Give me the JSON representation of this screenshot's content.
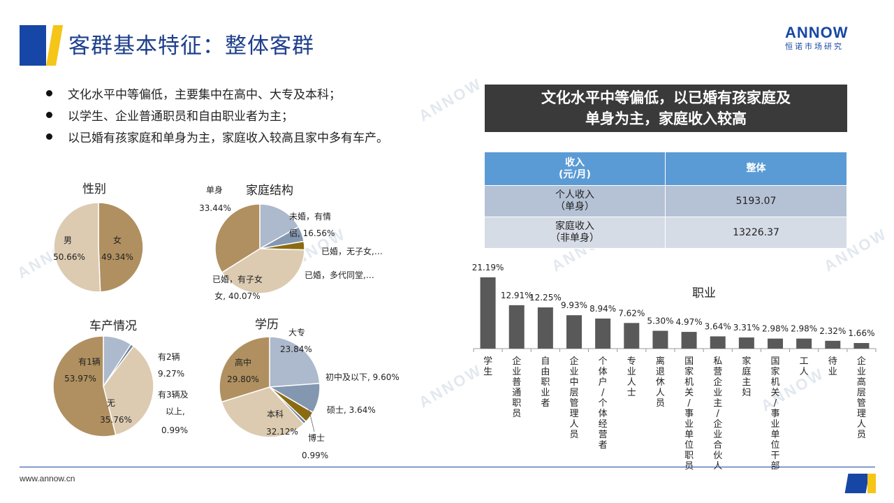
{
  "page": {
    "title": "客群基本特征：整体客群",
    "logo_word": "ANNOW",
    "logo_sub": "恒诺市场研究",
    "footer_url": "www.annow.cn"
  },
  "bullets": [
    "文化水平中等偏低，主要集中在高中、大专及本科；",
    "以学生、企业普通职员和自由职业者为主；",
    "以已婚有孩家庭和单身为主，家庭收入较高且家中多有车产。"
  ],
  "banner": {
    "line1": "文化水平中等偏低，以已婚有孩家庭及",
    "line2": "单身为主，家庭收入较高"
  },
  "income_table": {
    "header_col1_line1": "收入",
    "header_col1_line2": "(元/月)",
    "header_col2": "整体",
    "rows": [
      {
        "label_line1": "个人收入",
        "label_line2": "（单身）",
        "value": "5193.07"
      },
      {
        "label_line1": "家庭收入",
        "label_line2": "（非单身）",
        "value": "13226.37"
      }
    ]
  },
  "colors": {
    "brown": "#b09060",
    "beige": "#dccbb1",
    "slate_light": "#adb9cc",
    "slate": "#8497b0",
    "olive": "#8b6b12",
    "slate_dark": "#6e7f97",
    "bar": "#595959",
    "brand_blue": "#1747a6",
    "brand_yellow": "#f5c518"
  },
  "chart_data": [
    {
      "type": "pie",
      "title": "性别",
      "slices": [
        {
          "label": "女",
          "value": 49.34,
          "display": "49.34%",
          "color": "#b09060"
        },
        {
          "label": "男",
          "value": 50.66,
          "display": "50.66%",
          "color": "#dccbb1"
        }
      ]
    },
    {
      "type": "pie",
      "title": "家庭结构",
      "slices": [
        {
          "label": "未婚，有情侣",
          "value": 16.56,
          "display": "16.56%",
          "color": "#adb9cc"
        },
        {
          "label": "已婚，无子女,…",
          "value": 5.5,
          "display": "",
          "color": "#8497b0"
        },
        {
          "label": "已婚，多代同堂,…",
          "value": 2.99,
          "display": "",
          "color": "#8b6b12"
        },
        {
          "label": "已婚，有子女",
          "value": 40.07,
          "display": "40.07%",
          "color": "#dccbb1"
        },
        {
          "label": "单身",
          "value": 33.44,
          "display": "33.44%",
          "color": "#b09060"
        }
      ]
    },
    {
      "type": "pie",
      "title": "车产情况",
      "slices": [
        {
          "label": "有2辆",
          "value": 9.27,
          "display": "9.27%",
          "color": "#adb9cc"
        },
        {
          "label": "有3辆及以上",
          "value": 0.99,
          "display": "0.99%",
          "color": "#6e7f97"
        },
        {
          "label": "无",
          "value": 35.76,
          "display": "35.76%",
          "color": "#dccbb1"
        },
        {
          "label": "有1辆",
          "value": 53.97,
          "display": "53.97%",
          "color": "#b09060"
        }
      ]
    },
    {
      "type": "pie",
      "title": "学历",
      "slices": [
        {
          "label": "大专",
          "value": 23.84,
          "display": "23.84%",
          "color": "#adb9cc"
        },
        {
          "label": "初中及以下",
          "value": 9.6,
          "display": "9.60%",
          "color": "#8497b0"
        },
        {
          "label": "硕士",
          "value": 3.64,
          "display": "3.64%",
          "color": "#8b6b12"
        },
        {
          "label": "博士",
          "value": 0.99,
          "display": "0.99%",
          "color": "#6e7f97"
        },
        {
          "label": "本科",
          "value": 32.12,
          "display": "32.12%",
          "color": "#dccbb1"
        },
        {
          "label": "高中",
          "value": 29.8,
          "display": "29.80%",
          "color": "#b09060"
        }
      ]
    },
    {
      "type": "bar",
      "title": "职业",
      "categories": [
        "学生",
        "企业普通职员",
        "自由职业者",
        "企业中层管理人员",
        "个体户/个体经营者",
        "专业人士",
        "离退休人员",
        "国家机关/事业单位职员",
        "私营企业主/企业合伙人",
        "家庭主妇",
        "国家机关/事业单位干部",
        "工人",
        "待业",
        "企业高层管理人员"
      ],
      "values": [
        21.19,
        12.91,
        12.25,
        9.93,
        8.94,
        7.62,
        5.3,
        4.97,
        3.64,
        3.31,
        2.98,
        2.98,
        2.32,
        1.66
      ],
      "labels": [
        "21.19%",
        "12.91%",
        "12.25%",
        "9.93%",
        "8.94%",
        "7.62%",
        "5.30%",
        "4.97%",
        "3.64%",
        "3.31%",
        "2.98%",
        "2.98%",
        "2.32%",
        "1.66%"
      ],
      "ylim": [
        0,
        21.19
      ],
      "grid": false
    }
  ]
}
